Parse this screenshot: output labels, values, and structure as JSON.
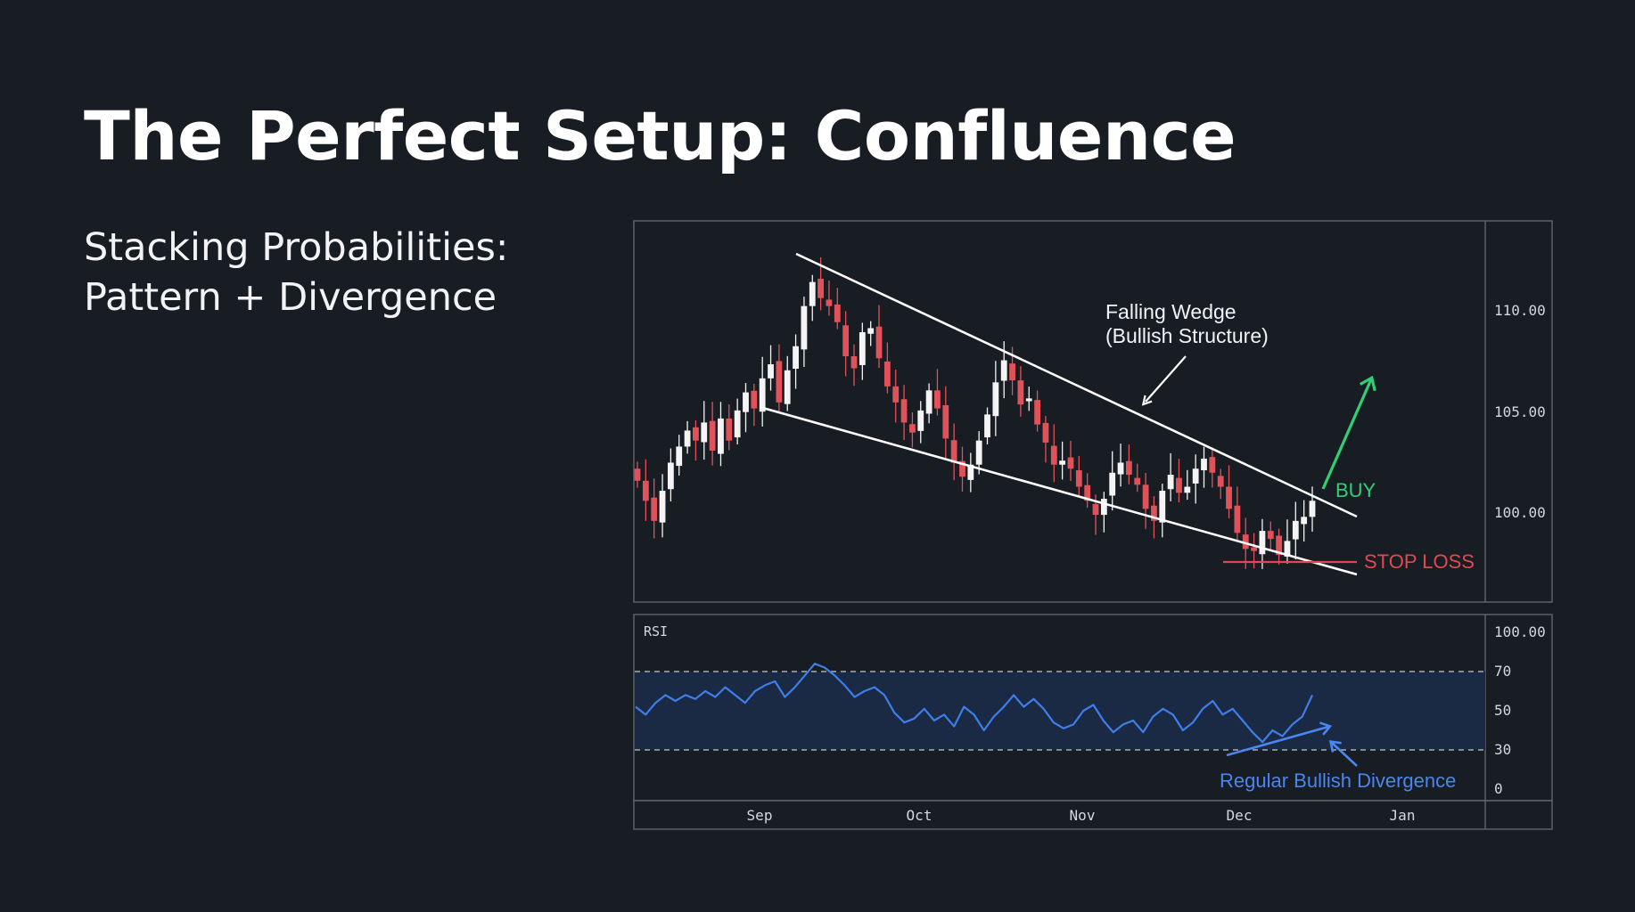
{
  "slide": {
    "title": "The Perfect Setup: Confluence",
    "subtitle_lines": [
      "Stacking Probabilities:",
      "Pattern + Divergence"
    ]
  },
  "colors": {
    "background": "#181c23",
    "up_candle": "#f4f4f4",
    "down_candle": "#e0525a",
    "wedge_lines": "#ffffff",
    "buy_arrow": "#2fd075",
    "stop_loss": "#e04a4e",
    "rsi_line": "#3f7de8",
    "rsi_band": "#1b2a44",
    "divergence": "#4a86f0"
  },
  "chart_data": [
    {
      "type": "candlestick",
      "panel": "price",
      "y_ticks": [
        "110.00",
        "105.00",
        "100.00"
      ],
      "ylim": [
        96.3,
        115.2
      ],
      "x_labels": [
        "Sep",
        "Oct",
        "Nov",
        "Dec",
        "Jan"
      ],
      "closes": [
        102.3,
        101.3,
        100.3,
        101.8,
        103.2,
        104.0,
        104.8,
        104.3,
        105.2,
        103.8,
        105.4,
        104.3,
        105.8,
        106.7,
        105.9,
        107.4,
        108.1,
        106.2,
        107.8,
        109.0,
        111.0,
        112.2,
        111.4,
        111.0,
        110.2,
        108.5,
        107.9,
        109.7,
        109.9,
        108.4,
        107.0,
        106.2,
        105.2,
        104.7,
        105.8,
        106.8,
        105.9,
        104.4,
        103.2,
        102.5,
        103.1,
        104.3,
        105.6,
        107.2,
        108.3,
        107.3,
        106.1,
        106.4,
        105.1,
        104.2,
        103.1,
        103.3,
        102.9,
        102.0,
        101.3,
        100.6,
        101.4,
        102.7,
        103.2,
        102.6,
        102.1,
        100.9,
        100.3,
        101.8,
        102.6,
        101.7,
        102.0,
        102.9,
        103.4,
        102.7,
        102.0,
        100.9,
        99.7,
        98.9,
        98.8,
        99.8,
        99.4,
        98.6,
        99.3,
        100.3,
        100.5,
        101.3
      ],
      "annotations": {
        "wedge_label_line1": "Falling Wedge",
        "wedge_label_line2": "(Bullish Structure)",
        "buy_label": "BUY",
        "stop_loss_label": "STOP LOSS",
        "stop_loss_level": 97.8
      }
    },
    {
      "type": "line",
      "panel": "rsi",
      "label": "RSI",
      "y_ticks": [
        "100.00",
        "70",
        "50",
        "30",
        "0"
      ],
      "overbought": 70,
      "oversold": 30,
      "ylim": [
        0,
        100
      ],
      "values": [
        52,
        48,
        54,
        58,
        55,
        58,
        56,
        60,
        57,
        62,
        58,
        54,
        60,
        63,
        65,
        57,
        62,
        68,
        74,
        72,
        68,
        63,
        57,
        60,
        62,
        58,
        49,
        44,
        46,
        51,
        45,
        48,
        42,
        52,
        48,
        40,
        47,
        52,
        58,
        52,
        56,
        51,
        44,
        41,
        43,
        50,
        53,
        45,
        39,
        43,
        45,
        39,
        47,
        51,
        48,
        40,
        44,
        51,
        55,
        48,
        51,
        45,
        39,
        34,
        40,
        37,
        43,
        47,
        58
      ],
      "divergence_label": "Regular Bullish Divergence"
    }
  ]
}
